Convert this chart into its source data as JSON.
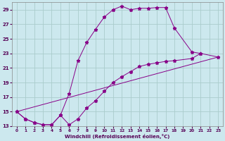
{
  "xlabel": "Windchill (Refroidissement éolien,°C)",
  "bg_color": "#cce8ee",
  "grid_color": "#aacccc",
  "line_color": "#880088",
  "line1_x": [
    0,
    1,
    2,
    3,
    4,
    5,
    6,
    7,
    8,
    9,
    10,
    11,
    12,
    13,
    14,
    15,
    16,
    17,
    18,
    20,
    21
  ],
  "line1_y": [
    15.0,
    14.0,
    13.5,
    13.2,
    13.2,
    14.5,
    17.5,
    22.0,
    24.5,
    26.3,
    28.0,
    29.0,
    29.5,
    29.0,
    29.2,
    29.2,
    29.3,
    29.3,
    26.5,
    23.2,
    23.0
  ],
  "line2_x": [
    0,
    1,
    2,
    3,
    4,
    5,
    6,
    7,
    8,
    9,
    10,
    11,
    12,
    13,
    14,
    15,
    16,
    17,
    18,
    20,
    21,
    23
  ],
  "line2_y": [
    15.0,
    14.0,
    13.5,
    13.2,
    13.2,
    14.5,
    13.2,
    14.0,
    15.5,
    16.5,
    17.8,
    19.0,
    19.8,
    20.5,
    21.2,
    21.5,
    21.7,
    21.9,
    22.0,
    22.3,
    23.0,
    22.5
  ],
  "line3_x": [
    0,
    23
  ],
  "line3_y": [
    15.0,
    22.5
  ],
  "ylim": [
    13,
    30
  ],
  "xlim": [
    -0.5,
    23.5
  ],
  "yticks": [
    13,
    15,
    17,
    19,
    21,
    23,
    25,
    27,
    29
  ],
  "xticks": [
    0,
    1,
    2,
    3,
    4,
    5,
    6,
    7,
    8,
    9,
    10,
    11,
    12,
    13,
    14,
    15,
    16,
    17,
    18,
    19,
    20,
    21,
    22,
    23
  ]
}
